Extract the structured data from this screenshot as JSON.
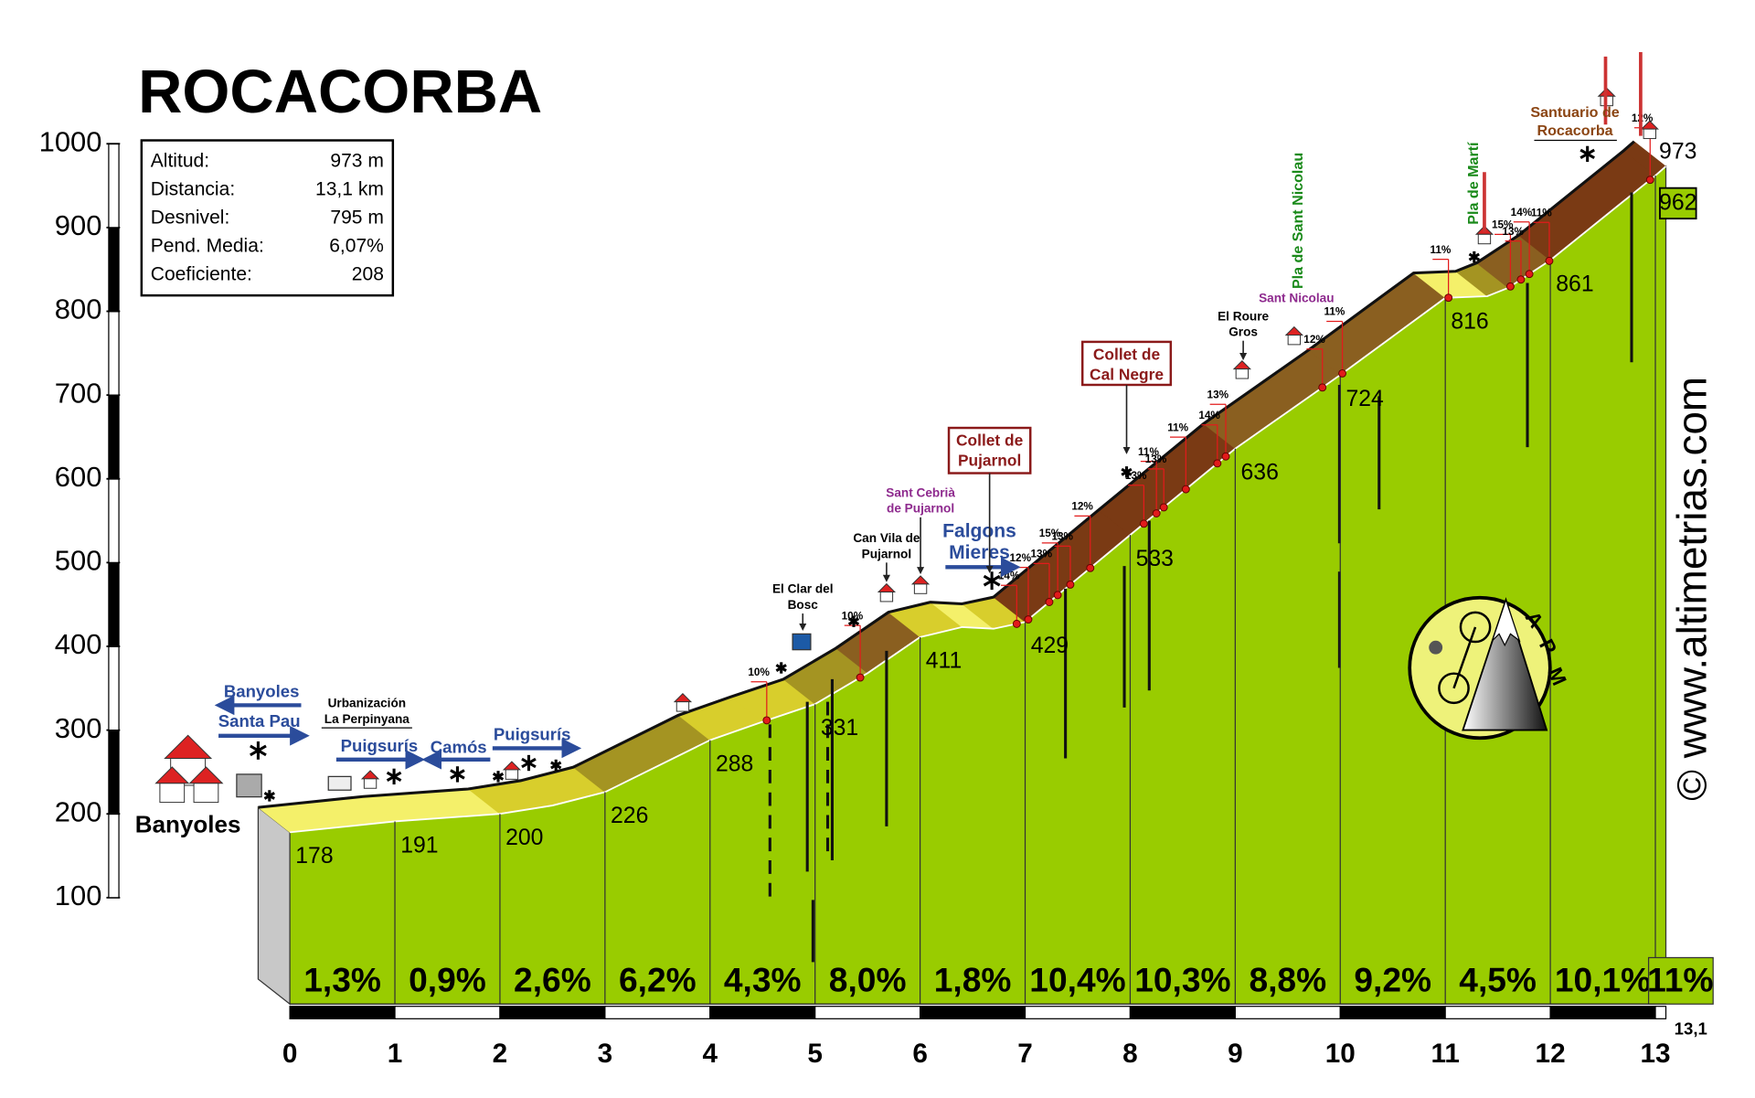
{
  "chart_data": {
    "type": "area",
    "title": "ROCACORBA",
    "color": "#99cc00",
    "x": [
      0,
      1,
      2,
      2.5,
      3,
      4,
      4.5,
      5,
      5.5,
      6,
      6.4,
      6.7,
      7,
      8,
      9,
      10,
      11,
      11.4,
      11.6,
      12,
      13,
      13.1
    ],
    "values": [
      178,
      191,
      200,
      210,
      226,
      288,
      310,
      331,
      368,
      411,
      423,
      421,
      429,
      533,
      636,
      724,
      816,
      818,
      828,
      861,
      962,
      973
    ],
    "xlim": [
      0,
      13.1
    ],
    "ylim": [
      100,
      1000
    ],
    "xticks": [
      0,
      1,
      2,
      3,
      4,
      5,
      6,
      7,
      8,
      9,
      10,
      11,
      12,
      13,
      {
        "value": 13.1,
        "label": "13,1"
      }
    ],
    "yticks": [
      100,
      200,
      300,
      400,
      500,
      600,
      700,
      800,
      900,
      1000
    ],
    "altitude_labels": {
      "x": [
        0,
        1,
        2,
        3,
        4,
        5,
        6,
        7,
        8,
        9,
        10,
        11,
        12,
        13,
        13.1
      ],
      "values": [
        178,
        191,
        200,
        226,
        288,
        331,
        411,
        429,
        533,
        636,
        724,
        816,
        861,
        962,
        973
      ]
    },
    "segment_gradients": {
      "bins": [
        0,
        1,
        2,
        3,
        4,
        5,
        6,
        7,
        8,
        9,
        10,
        11,
        12,
        13,
        13.1
      ],
      "values": [
        1.3,
        0.9,
        2.6,
        6.2,
        4.3,
        8.0,
        1.8,
        10.4,
        10.3,
        8.8,
        9.2,
        4.5,
        10.1,
        11
      ],
      "value_labels": [
        "1,3%",
        "0,9%",
        "2,6%",
        "6,2%",
        "4,3%",
        "8,0%",
        "1,8%",
        "10,4%",
        "10,3%",
        "8,8%",
        "9,2%",
        "4,5%",
        "10,1%",
        "11%"
      ]
    },
    "gradient_marks": {
      "x": [
        4.54,
        5.43,
        6.92,
        7.03,
        7.23,
        7.31,
        7.43,
        7.62,
        8.13,
        8.25,
        8.32,
        8.53,
        8.83,
        8.91,
        9.83,
        10.02,
        11.03,
        11.62,
        11.72,
        11.8,
        11.99,
        12.95
      ],
      "values": [
        10,
        10,
        14,
        12,
        13,
        15,
        13,
        12,
        13,
        11,
        13,
        11,
        14,
        13,
        12,
        11,
        11,
        15,
        13,
        14,
        11,
        12
      ],
      "value_labels": [
        "10%",
        "10%",
        "14%",
        "12%",
        "13%",
        "15%",
        "13%",
        "12%",
        "13%",
        "11%",
        "13%",
        "11%",
        "14%",
        "13%",
        "12%",
        "11%",
        "11%",
        "15%",
        "13%",
        "14%",
        "11%",
        "12%"
      ]
    },
    "info_box": {
      "rows": [
        [
          "Altitud:",
          "973 m"
        ],
        [
          "Distancia:",
          "13,1 km"
        ],
        [
          "Desnivel:",
          "795 m"
        ],
        [
          "Pend. Media:",
          "6,07%"
        ],
        [
          "Coeficiente:",
          "208"
        ]
      ]
    },
    "annotations": [
      {
        "lines": [
          "Banyoles"
        ]
      },
      {
        "lines": [
          "Banyoles"
        ]
      },
      {
        "lines": [
          "Santa Pau"
        ]
      },
      {
        "lines": [
          "Urbanización",
          "La Perpinyana"
        ]
      },
      {
        "lines": [
          "Puigsurís"
        ]
      },
      {
        "lines": [
          "Camós"
        ]
      },
      {
        "lines": [
          "Puigsurís"
        ]
      },
      {
        "lines": [
          "El Clar del",
          "Bosc"
        ]
      },
      {
        "lines": [
          "Can Vila de",
          "Pujarnol"
        ]
      },
      {
        "lines": [
          "Sant Cebrià",
          "de Pujarnol"
        ]
      },
      {
        "lines": [
          "Falgons",
          "Mieres"
        ]
      },
      {
        "lines": [
          "Collet de",
          "Pujarnol"
        ]
      },
      {
        "lines": [
          "Collet de",
          "Cal Negre"
        ]
      },
      {
        "lines": [
          "El Roure",
          "Gros"
        ]
      },
      {
        "lines": [
          "Sant Nicolau"
        ]
      },
      {
        "lines": [
          "Pla de Sant Nicolau"
        ]
      },
      {
        "lines": [
          "Pla de Martí"
        ]
      },
      {
        "lines": [
          "Santuario de",
          "Rocacorba"
        ]
      }
    ],
    "credit": "© www.altimetrias.com",
    "logo_text": [
      "A",
      "P",
      "M"
    ]
  }
}
